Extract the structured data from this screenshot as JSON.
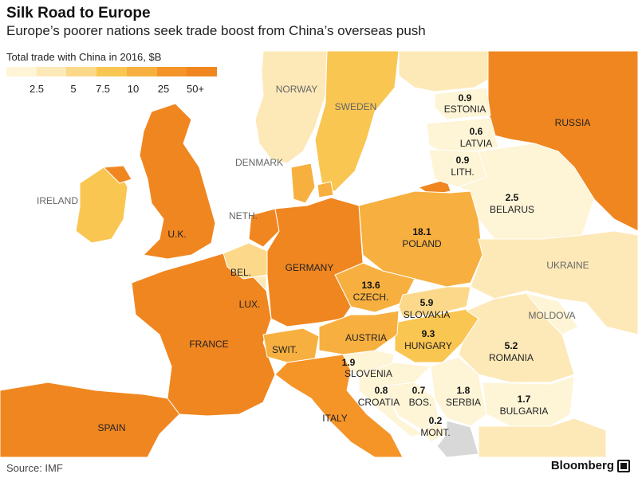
{
  "header": {
    "title": "Silk Road to Europe",
    "subtitle": "Europe’s poorer nations seek trade boost from China’s overseas push"
  },
  "legend": {
    "title": "Total trade with China in 2016, $B",
    "ticks": [
      "2.5",
      "5",
      "7.5",
      "10",
      "25",
      "50+"
    ],
    "colors": [
      "#fef4d6",
      "#fde9b8",
      "#fcd98a",
      "#f9c652",
      "#f7b040",
      "#f59427",
      "#f08620"
    ]
  },
  "colors": {
    "sea": "#ffffff",
    "border": "#ffffff",
    "no_data": "#d8d8d8"
  },
  "countries": {
    "russia": {
      "name": "RUSSIA"
    },
    "estonia": {
      "name": "ESTONIA",
      "value": "0.9"
    },
    "latvia": {
      "name": "LATVIA",
      "value": "0.6"
    },
    "lithuania": {
      "name": "LITH.",
      "value": "0.9"
    },
    "belarus": {
      "name": "BELARUS",
      "value": "2.5"
    },
    "poland": {
      "name": "POLAND",
      "value": "18.1"
    },
    "ukraine": {
      "name": "UKRAINE"
    },
    "moldova": {
      "name": "MOLDOVA"
    },
    "czech": {
      "name": "CZECH.",
      "value": "13.6"
    },
    "slovakia": {
      "name": "SLOVAKIA",
      "value": "5.9"
    },
    "hungary": {
      "name": "HUNGARY",
      "value": "9.3"
    },
    "romania": {
      "name": "ROMANIA",
      "value": "5.2"
    },
    "slovenia": {
      "name": "SLOVENIA",
      "value": "1.9"
    },
    "croatia": {
      "name": "CROATIA",
      "value": "0.8"
    },
    "bosnia": {
      "name": "BOS.",
      "value": "0.7"
    },
    "serbia": {
      "name": "SERBIA",
      "value": "1.8"
    },
    "montenegro": {
      "name": "MONT.",
      "value": "0.2"
    },
    "bulgaria": {
      "name": "BULGARIA",
      "value": "1.7"
    },
    "norway": {
      "name": "NORWAY"
    },
    "sweden": {
      "name": "SWEDEN"
    },
    "denmark": {
      "name": "DENMARK"
    },
    "ireland": {
      "name": "IRELAND"
    },
    "uk": {
      "name": "U.K."
    },
    "netherlands": {
      "name": "NETH."
    },
    "belgium": {
      "name": "BEL."
    },
    "luxembourg": {
      "name": "LUX."
    },
    "germany": {
      "name": "GERMANY"
    },
    "france": {
      "name": "FRANCE"
    },
    "switzerland": {
      "name": "SWIT."
    },
    "austria": {
      "name": "AUSTRIA"
    },
    "italy": {
      "name": "ITALY"
    },
    "spain": {
      "name": "SPAIN"
    }
  },
  "footer": {
    "source": "Source: IMF",
    "brand": "Bloomberg"
  }
}
